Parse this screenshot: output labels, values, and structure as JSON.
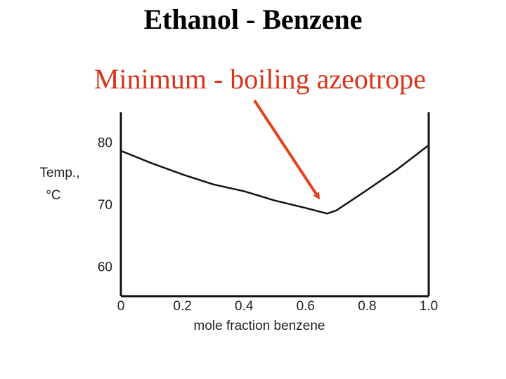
{
  "chart_data": {
    "type": "line",
    "title": "Ethanol - Benzene",
    "subtitle": "Minimum - boiling azeotrope",
    "xlabel": "mole fraction benzene",
    "ylabel": [
      "Temp.,",
      "°C"
    ],
    "x": [
      0,
      0.1,
      0.2,
      0.3,
      0.4,
      0.5,
      0.6,
      0.67,
      0.7,
      0.8,
      0.9,
      1
    ],
    "series": [
      {
        "color": "#111111",
        "values": [
          78.8,
          76.8,
          75.0,
          73.4,
          72.3,
          70.8,
          69.6,
          68.7,
          69.2,
          72.5,
          75.9,
          79.7
        ]
      }
    ],
    "xlim": [
      0,
      1
    ],
    "xticks": [
      0,
      0.2,
      0.4,
      0.6,
      0.8,
      {
        "value": 1,
        "label": "1.0"
      }
    ],
    "ylim": [
      55.4,
      85
    ],
    "yticks": [
      60,
      70,
      80
    ],
    "grid": false
  }
}
